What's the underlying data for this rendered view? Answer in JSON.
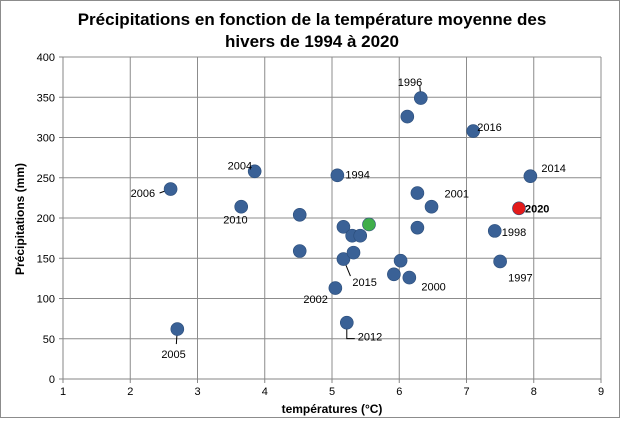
{
  "chart_data": {
    "type": "scatter",
    "title_lines": [
      "Précipitations en fonction de la température moyenne des",
      "hivers de 1994 à 2020"
    ],
    "xlabel": "températures (°C)",
    "ylabel": "Précipitations  (mm)",
    "xlim": [
      1,
      9
    ],
    "ylim": [
      0,
      400
    ],
    "xticks": [
      1,
      2,
      3,
      4,
      5,
      6,
      7,
      8,
      9
    ],
    "yticks": [
      0,
      50,
      100,
      150,
      200,
      250,
      300,
      350,
      400
    ],
    "grid": true,
    "legend": "none",
    "colors": {
      "default": "#3a6196",
      "highlight_red": "#e31b1b",
      "highlight_green": "#3fae4a"
    },
    "points": [
      {
        "x": 2.6,
        "y": 236,
        "label": "2006"
      },
      {
        "x": 2.7,
        "y": 62,
        "label": "2005"
      },
      {
        "x": 3.65,
        "y": 214,
        "label": "2010"
      },
      {
        "x": 3.85,
        "y": 258,
        "label": "2004"
      },
      {
        "x": 4.52,
        "y": 204,
        "label": ""
      },
      {
        "x": 4.52,
        "y": 159,
        "label": ""
      },
      {
        "x": 5.05,
        "y": 113,
        "label": "2002"
      },
      {
        "x": 5.08,
        "y": 253,
        "label": "1994"
      },
      {
        "x": 5.17,
        "y": 189,
        "label": ""
      },
      {
        "x": 5.17,
        "y": 149,
        "label": "2015"
      },
      {
        "x": 5.22,
        "y": 70,
        "label": "2012"
      },
      {
        "x": 5.3,
        "y": 178,
        "label": ""
      },
      {
        "x": 5.32,
        "y": 157,
        "label": ""
      },
      {
        "x": 5.42,
        "y": 178,
        "label": ""
      },
      {
        "x": 5.55,
        "y": 192,
        "label": "",
        "color": "highlight_green"
      },
      {
        "x": 5.92,
        "y": 130,
        "label": ""
      },
      {
        "x": 6.02,
        "y": 147,
        "label": ""
      },
      {
        "x": 6.12,
        "y": 326,
        "label": ""
      },
      {
        "x": 6.15,
        "y": 126,
        "label": "2000"
      },
      {
        "x": 6.27,
        "y": 188,
        "label": ""
      },
      {
        "x": 6.27,
        "y": 231,
        "label": ""
      },
      {
        "x": 6.32,
        "y": 349,
        "label": "1996"
      },
      {
        "x": 6.48,
        "y": 214,
        "label": "2001"
      },
      {
        "x": 7.1,
        "y": 308,
        "label": "2016"
      },
      {
        "x": 7.42,
        "y": 184,
        "label": "1998"
      },
      {
        "x": 7.5,
        "y": 146,
        "label": "1997"
      },
      {
        "x": 7.78,
        "y": 212,
        "label": "2020",
        "color": "highlight_red",
        "bold": true
      },
      {
        "x": 7.95,
        "y": 252,
        "label": "2014"
      }
    ]
  }
}
